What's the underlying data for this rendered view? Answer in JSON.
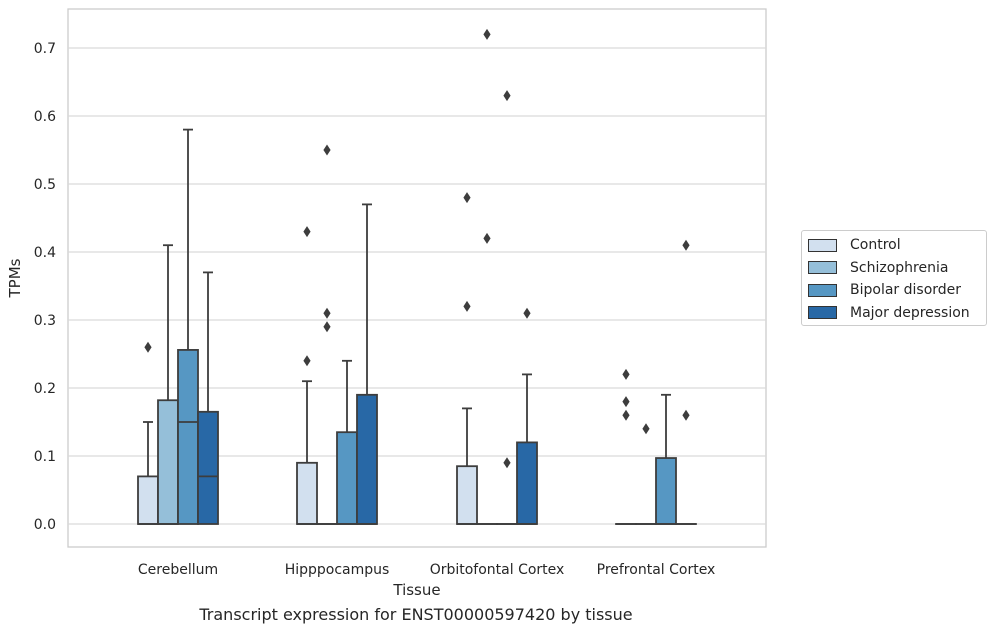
{
  "chart_data": {
    "type": "boxplot",
    "title": "Transcript expression for ENST00000597420 by tissue",
    "xlabel": "Tissue",
    "ylabel": "TPMs",
    "ylim": [
      -0.035,
      0.755
    ],
    "yticks": [
      0.0,
      0.1,
      0.2,
      0.3,
      0.4,
      0.5,
      0.6,
      0.7
    ],
    "ytick_labels": [
      "0.0",
      "0.1",
      "0.2",
      "0.3",
      "0.4",
      "0.5",
      "0.6",
      "0.7"
    ],
    "grid": "horizontal",
    "legend_position": "right",
    "categories": [
      "Cerebellum",
      "Hipppocampus",
      "Orbitofontal Cortex",
      "Prefrontal Cortex"
    ],
    "series": [
      {
        "name": "Control",
        "color": "#d2e0ef",
        "boxes": [
          {
            "q1": 0.0,
            "median": 0.0,
            "q3": 0.07,
            "whisker_low": 0.0,
            "whisker_high": 0.15,
            "outliers": [
              0.26
            ]
          },
          {
            "q1": 0.0,
            "median": 0.0,
            "q3": 0.09,
            "whisker_low": 0.0,
            "whisker_high": 0.21,
            "outliers": [
              0.24,
              0.43
            ]
          },
          {
            "q1": 0.0,
            "median": 0.0,
            "q3": 0.085,
            "whisker_low": 0.0,
            "whisker_high": 0.17,
            "outliers": [
              0.32,
              0.48
            ]
          },
          {
            "q1": 0.0,
            "median": 0.0,
            "q3": 0.0,
            "whisker_low": 0.0,
            "whisker_high": 0.0,
            "outliers": [
              0.16,
              0.18,
              0.22
            ]
          }
        ]
      },
      {
        "name": "Schizophrenia",
        "color": "#95bfd9",
        "boxes": [
          {
            "q1": 0.0,
            "median": 0.0,
            "q3": 0.182,
            "whisker_low": 0.0,
            "whisker_high": 0.41,
            "outliers": []
          },
          {
            "q1": 0.0,
            "median": 0.0,
            "q3": 0.0,
            "whisker_low": 0.0,
            "whisker_high": 0.0,
            "outliers": [
              0.29,
              0.31,
              0.55
            ]
          },
          {
            "q1": 0.0,
            "median": 0.0,
            "q3": 0.0,
            "whisker_low": 0.0,
            "whisker_high": 0.0,
            "outliers": [
              0.42,
              0.72
            ]
          },
          {
            "q1": 0.0,
            "median": 0.0,
            "q3": 0.0,
            "whisker_low": 0.0,
            "whisker_high": 0.0,
            "outliers": [
              0.14
            ]
          }
        ]
      },
      {
        "name": "Bipolar disorder",
        "color": "#5697c3",
        "boxes": [
          {
            "q1": 0.0,
            "median": 0.15,
            "q3": 0.256,
            "whisker_low": 0.0,
            "whisker_high": 0.58,
            "outliers": []
          },
          {
            "q1": 0.0,
            "median": 0.0,
            "q3": 0.135,
            "whisker_low": 0.0,
            "whisker_high": 0.24,
            "outliers": []
          },
          {
            "q1": 0.0,
            "median": 0.0,
            "q3": 0.0,
            "whisker_low": 0.0,
            "whisker_high": 0.0,
            "outliers": [
              0.09,
              0.63
            ]
          },
          {
            "q1": 0.0,
            "median": 0.0,
            "q3": 0.097,
            "whisker_low": 0.0,
            "whisker_high": 0.19,
            "outliers": []
          }
        ]
      },
      {
        "name": "Major depression",
        "color": "#2868a6",
        "boxes": [
          {
            "q1": 0.0,
            "median": 0.07,
            "q3": 0.165,
            "whisker_low": 0.0,
            "whisker_high": 0.37,
            "outliers": []
          },
          {
            "q1": 0.0,
            "median": 0.0,
            "q3": 0.19,
            "whisker_low": 0.0,
            "whisker_high": 0.47,
            "outliers": []
          },
          {
            "q1": 0.0,
            "median": 0.0,
            "q3": 0.12,
            "whisker_low": 0.0,
            "whisker_high": 0.22,
            "outliers": [
              0.31
            ]
          },
          {
            "q1": 0.0,
            "median": 0.0,
            "q3": 0.0,
            "whisker_low": 0.0,
            "whisker_high": 0.0,
            "outliers": [
              0.16,
              0.41
            ]
          }
        ]
      }
    ]
  }
}
